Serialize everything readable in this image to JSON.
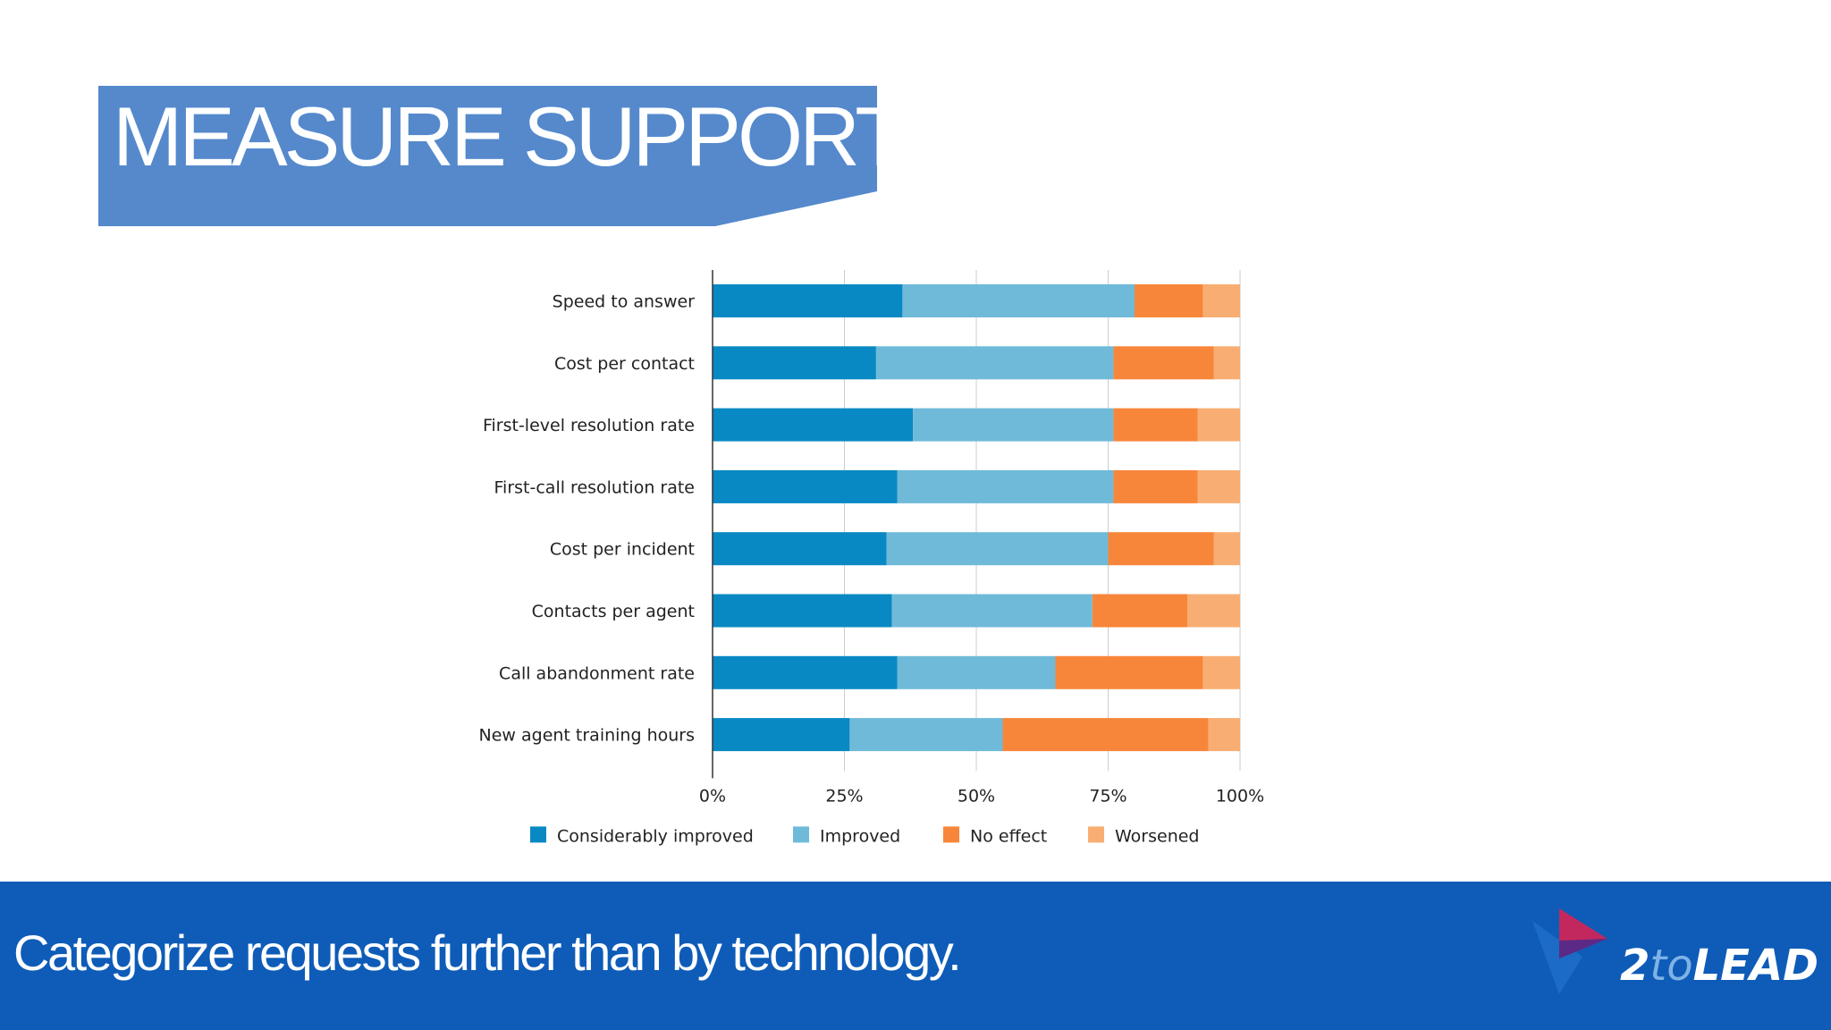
{
  "slide": {
    "title": "MEASURE SUPPORT…",
    "footer_text": "Categorize requests further than by technology.",
    "logo": {
      "part1": "2",
      "part2": "to",
      "part3": "LEAD"
    }
  },
  "colors": {
    "title_banner": "#5589cc",
    "footer": "#0e5cb8",
    "grid": "#cccccc"
  },
  "chart_data": {
    "type": "bar",
    "orientation": "horizontal",
    "stacked": true,
    "categories": [
      "Speed to answer",
      "Cost per contact",
      "First-level resolution rate",
      "First-call resolution rate",
      "Cost per incident",
      "Contacts per agent",
      "Call abandonment rate",
      "New agent training hours"
    ],
    "series": [
      {
        "name": "Considerably improved",
        "color": "#0889c4",
        "values": [
          36,
          31,
          38,
          35,
          33,
          34,
          35,
          26
        ]
      },
      {
        "name": "Improved",
        "color": "#6fbad9",
        "values": [
          44,
          45,
          38,
          41,
          42,
          38,
          30,
          29
        ]
      },
      {
        "name": "No effect",
        "color": "#f8863a",
        "values": [
          13,
          19,
          16,
          16,
          20,
          18,
          28,
          39
        ]
      },
      {
        "name": "Worsened",
        "color": "#f8ae73",
        "values": [
          7,
          5,
          8,
          8,
          5,
          10,
          7,
          6
        ]
      }
    ],
    "xlim": [
      0,
      100
    ],
    "xticks": [
      "0%",
      "25%",
      "50%",
      "75%",
      "100%"
    ],
    "grid": true,
    "legend_position": "bottom"
  }
}
